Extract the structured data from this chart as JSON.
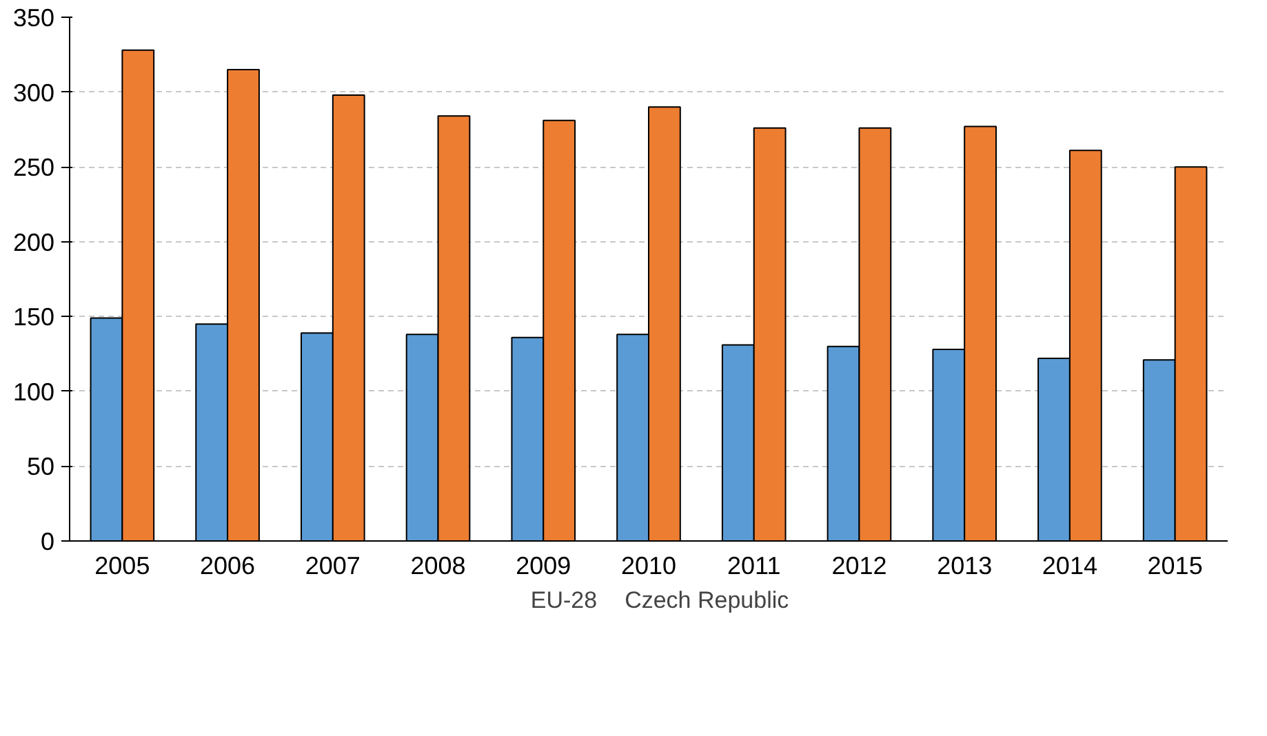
{
  "chart_data": {
    "type": "bar",
    "categories": [
      "2005",
      "2006",
      "2007",
      "2008",
      "2009",
      "2010",
      "2011",
      "2012",
      "2013",
      "2014",
      "2015"
    ],
    "series": [
      {
        "name": "EU-28",
        "color": "#5b9bd5",
        "values": [
          149,
          145,
          139,
          138,
          136,
          138,
          131,
          130,
          128,
          122,
          121
        ]
      },
      {
        "name": "Czech Republic",
        "color": "#ed7d31",
        "values": [
          328,
          315,
          298,
          284,
          281,
          290,
          276,
          276,
          277,
          261,
          250
        ]
      }
    ],
    "ylim": [
      0,
      350
    ],
    "yticks": [
      0,
      50,
      100,
      150,
      200,
      250,
      300,
      350
    ],
    "grid": "y",
    "legend": "bottom"
  }
}
